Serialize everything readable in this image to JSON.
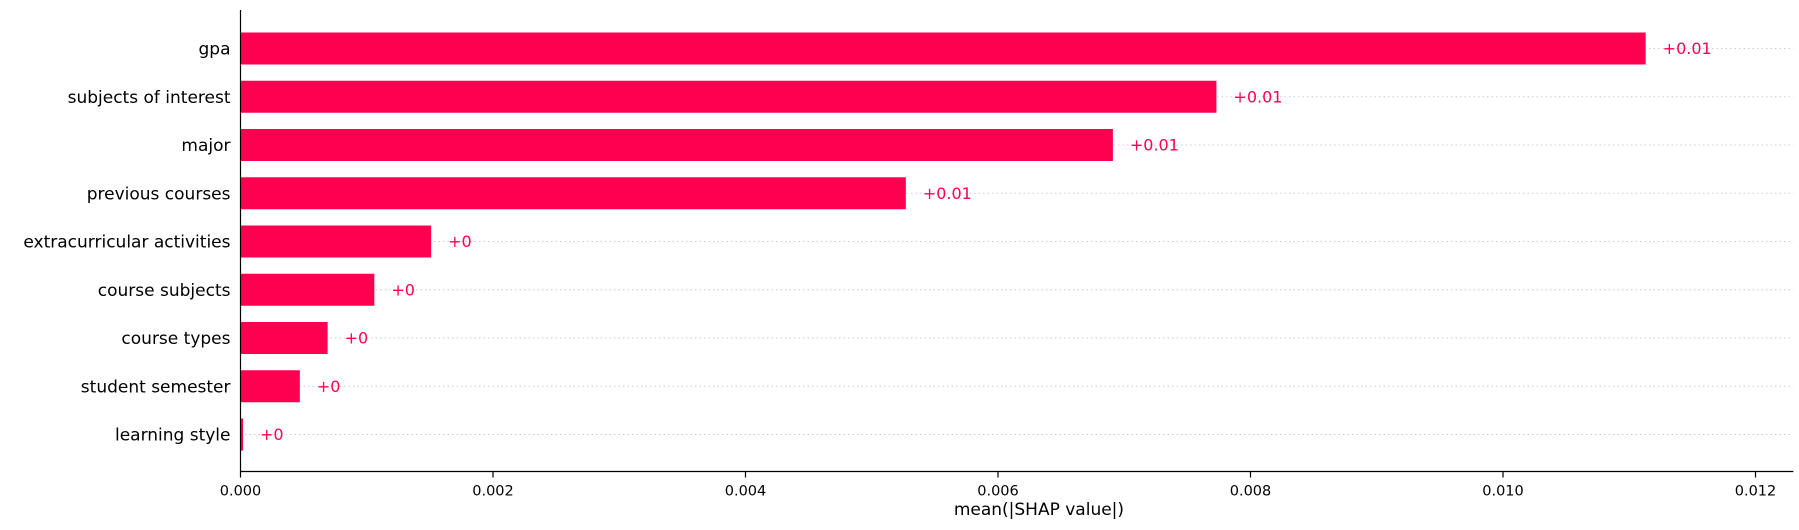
{
  "chart_data": {
    "type": "bar",
    "orientation": "horizontal",
    "xlabel": "mean(|SHAP value|)",
    "xlim": [
      0,
      0.0123
    ],
    "xticks": [
      0.0,
      0.002,
      0.004,
      0.006,
      0.008,
      0.01,
      0.012
    ],
    "xtick_labels": [
      "0.000",
      "0.002",
      "0.004",
      "0.006",
      "0.008",
      "0.010",
      "0.012"
    ],
    "grid": "horizontal dotted",
    "bar_color": "#ff0051",
    "categories": [
      "gpa",
      "subjects of interest",
      "major",
      "previous courses",
      "extracurricular activities",
      "course subjects",
      "course types",
      "student semester",
      "learning style"
    ],
    "values": [
      0.01113,
      0.00773,
      0.00691,
      0.00527,
      0.00151,
      0.00106,
      0.00069,
      0.00047,
      2e-05
    ],
    "data_labels": [
      "+0.01",
      "+0.01",
      "+0.01",
      "+0.01",
      "+0",
      "+0",
      "+0",
      "+0",
      "+0"
    ]
  }
}
